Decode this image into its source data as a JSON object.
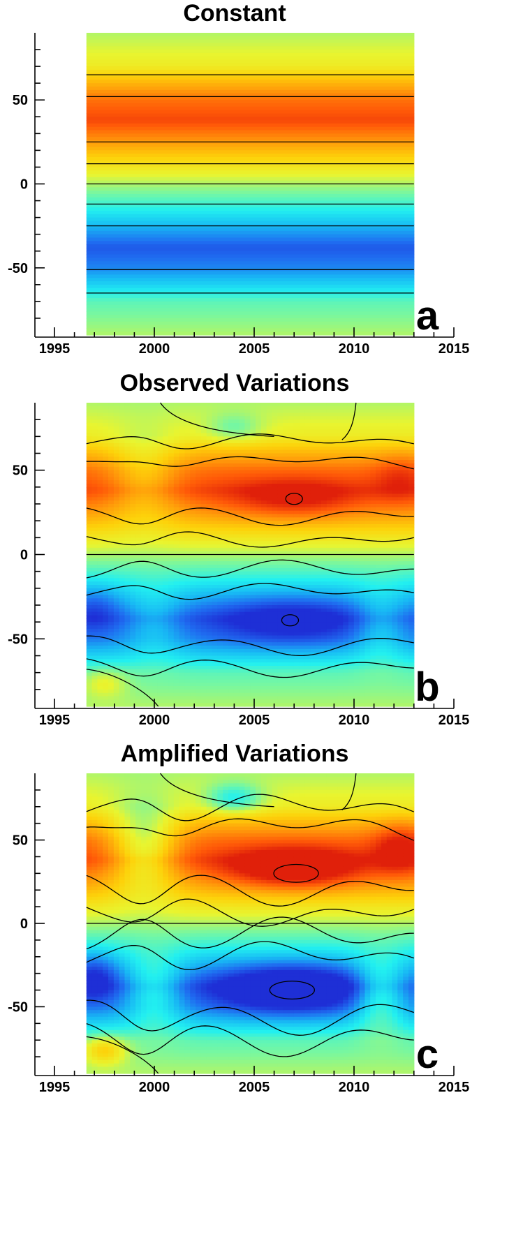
{
  "chart_data": [
    {
      "type": "heatmap",
      "panel_label": "a",
      "title": "Constant",
      "xlabel": "",
      "ylabel": "",
      "xlim": [
        1995,
        2015
      ],
      "ylim": [
        -90,
        90
      ],
      "data_x_range": [
        1996.6,
        2013.0
      ],
      "x_ticks": [
        "1995",
        "2000",
        "2005",
        "2010",
        "2015"
      ],
      "y_ticks": [
        "50",
        "0",
        "-50"
      ],
      "field_profile": [
        {
          "lat": 90,
          "v": 0.0
        },
        {
          "lat": 70,
          "v": 0.18
        },
        {
          "lat": 60,
          "v": 0.45
        },
        {
          "lat": 50,
          "v": 0.7
        },
        {
          "lat": 38,
          "v": 0.85
        },
        {
          "lat": 25,
          "v": 0.55
        },
        {
          "lat": 12,
          "v": 0.25
        },
        {
          "lat": 0,
          "v": 0.0
        },
        {
          "lat": -12,
          "v": -0.25
        },
        {
          "lat": -25,
          "v": -0.55
        },
        {
          "lat": -38,
          "v": -0.85
        },
        {
          "lat": -50,
          "v": -0.7
        },
        {
          "lat": -60,
          "v": -0.45
        },
        {
          "lat": -70,
          "v": -0.18
        },
        {
          "lat": -90,
          "v": 0.0
        }
      ],
      "contour_levels_lat": [
        65,
        52,
        25,
        12,
        0,
        -12,
        -25,
        -51,
        -65
      ]
    },
    {
      "type": "heatmap",
      "panel_label": "b",
      "title": "Observed Variations",
      "xlabel": "",
      "ylabel": "",
      "xlim": [
        1995,
        2015
      ],
      "ylim": [
        -90,
        90
      ],
      "data_x_range": [
        1996.6,
        2013.0
      ],
      "x_ticks": [
        "1995",
        "2000",
        "2005",
        "2010",
        "2015"
      ],
      "y_ticks": [
        "50",
        "0",
        "-50"
      ],
      "max_north": {
        "year": 2007.0,
        "lat": 33
      },
      "max_south": {
        "year": 2006.8,
        "lat": -39
      }
    },
    {
      "type": "heatmap",
      "panel_label": "c",
      "title": "Amplified Variations",
      "xlabel": "",
      "ylabel": "",
      "xlim": [
        1995,
        2015
      ],
      "ylim": [
        -90,
        90
      ],
      "data_x_range": [
        1996.6,
        2013.0
      ],
      "x_ticks": [
        "1995",
        "2000",
        "2005",
        "2010",
        "2015"
      ],
      "y_ticks": [
        "50",
        "0",
        "-50"
      ],
      "max_north": {
        "year": 2007.1,
        "lat": 30
      },
      "max_south": {
        "year": 2006.9,
        "lat": -40
      }
    }
  ],
  "colors": {
    "colormap": [
      "#1e2fd6",
      "#1f6cf0",
      "#18b8f4",
      "#22f0f0",
      "#78f7a0",
      "#e8f530",
      "#fdd20a",
      "#ff9a0a",
      "#ff5a08",
      "#e0200a"
    ],
    "contour": "#000000"
  }
}
